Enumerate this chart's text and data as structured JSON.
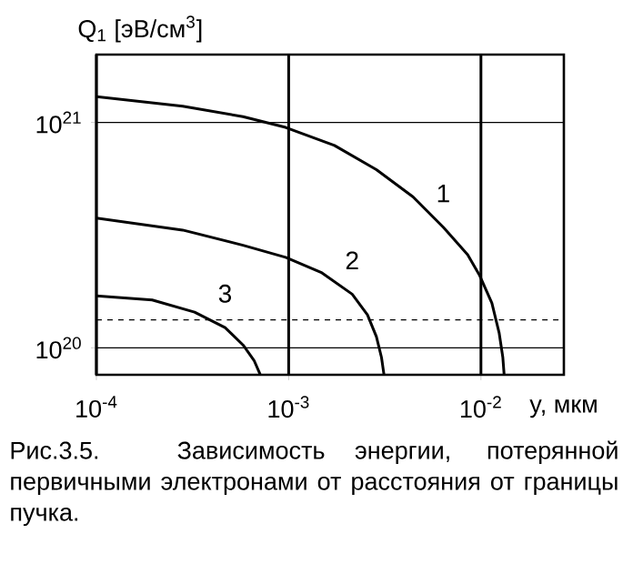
{
  "chart_data": {
    "type": "line",
    "log": "xy",
    "grid": true,
    "line_style": "solid",
    "xlabel": "y, мкм",
    "ylabel": "Q$_{1}$ [эВ/см$^{3}$]",
    "xlim": [
      0.0001,
      0.027
    ],
    "ylim": [
      7.6e+19,
      2e+21
    ],
    "xticks": [
      {
        "value": 0.0001,
        "label": "10$^{-4}$"
      },
      {
        "value": 0.001,
        "label": "10$^{-3}$"
      },
      {
        "value": 0.01,
        "label": "10$^{-2}$"
      }
    ],
    "yticks": [
      {
        "value": 1e+20,
        "label": "10$^{20}$"
      },
      {
        "value": 1e+21,
        "label": "10$^{21}$"
      }
    ],
    "ref_lines": [
      {
        "axis": "y",
        "value": 1.33e+20,
        "line_style": "dashed"
      }
    ],
    "series": [
      {
        "name": "1",
        "color": "#000000",
        "x": [
          0.0001,
          0.000281,
          0.000579,
          0.000964,
          0.00173,
          0.00286,
          0.00444,
          0.00637,
          0.00853,
          0.00986,
          0.0114,
          0.01245,
          0.013,
          0.0132
        ],
        "values": [
          1.3e+21,
          1.18e+21,
          1.06e+21,
          9.5e+20,
          7.9e+20,
          6.17e+20,
          4.67e+20,
          3.43e+20,
          2.59e+20,
          2.09e+20,
          1.58e+20,
          1.16e+20,
          9.06e+19,
          7.62e+19
        ]
      },
      {
        "name": "2",
        "color": "#000000",
        "x": [
          0.0001,
          0.000281,
          0.000579,
          0.000964,
          0.00149,
          0.00214,
          0.00257,
          0.00286,
          0.00304,
          0.00313
        ],
        "values": [
          3.76e+20,
          3.33e+20,
          2.85e+20,
          2.52e+20,
          2.15e+20,
          1.73e+20,
          1.4e+20,
          1.12e+20,
          9.06e+19,
          7.62e+19
        ]
      },
      {
        "name": "3",
        "color": "#000000",
        "x": [
          0.0001,
          0.000195,
          0.000324,
          0.000467,
          0.000579,
          0.000661,
          0.000711
        ],
        "values": [
          1.7e+20,
          1.63e+20,
          1.44e+20,
          1.23e+20,
          1.03e+20,
          8.79e+19,
          7.62e+19
        ]
      }
    ],
    "annotations": [
      "Рис.3.5. Зависимость энергии, потерянной первичными электронами от расстояния от границы пучка."
    ]
  }
}
